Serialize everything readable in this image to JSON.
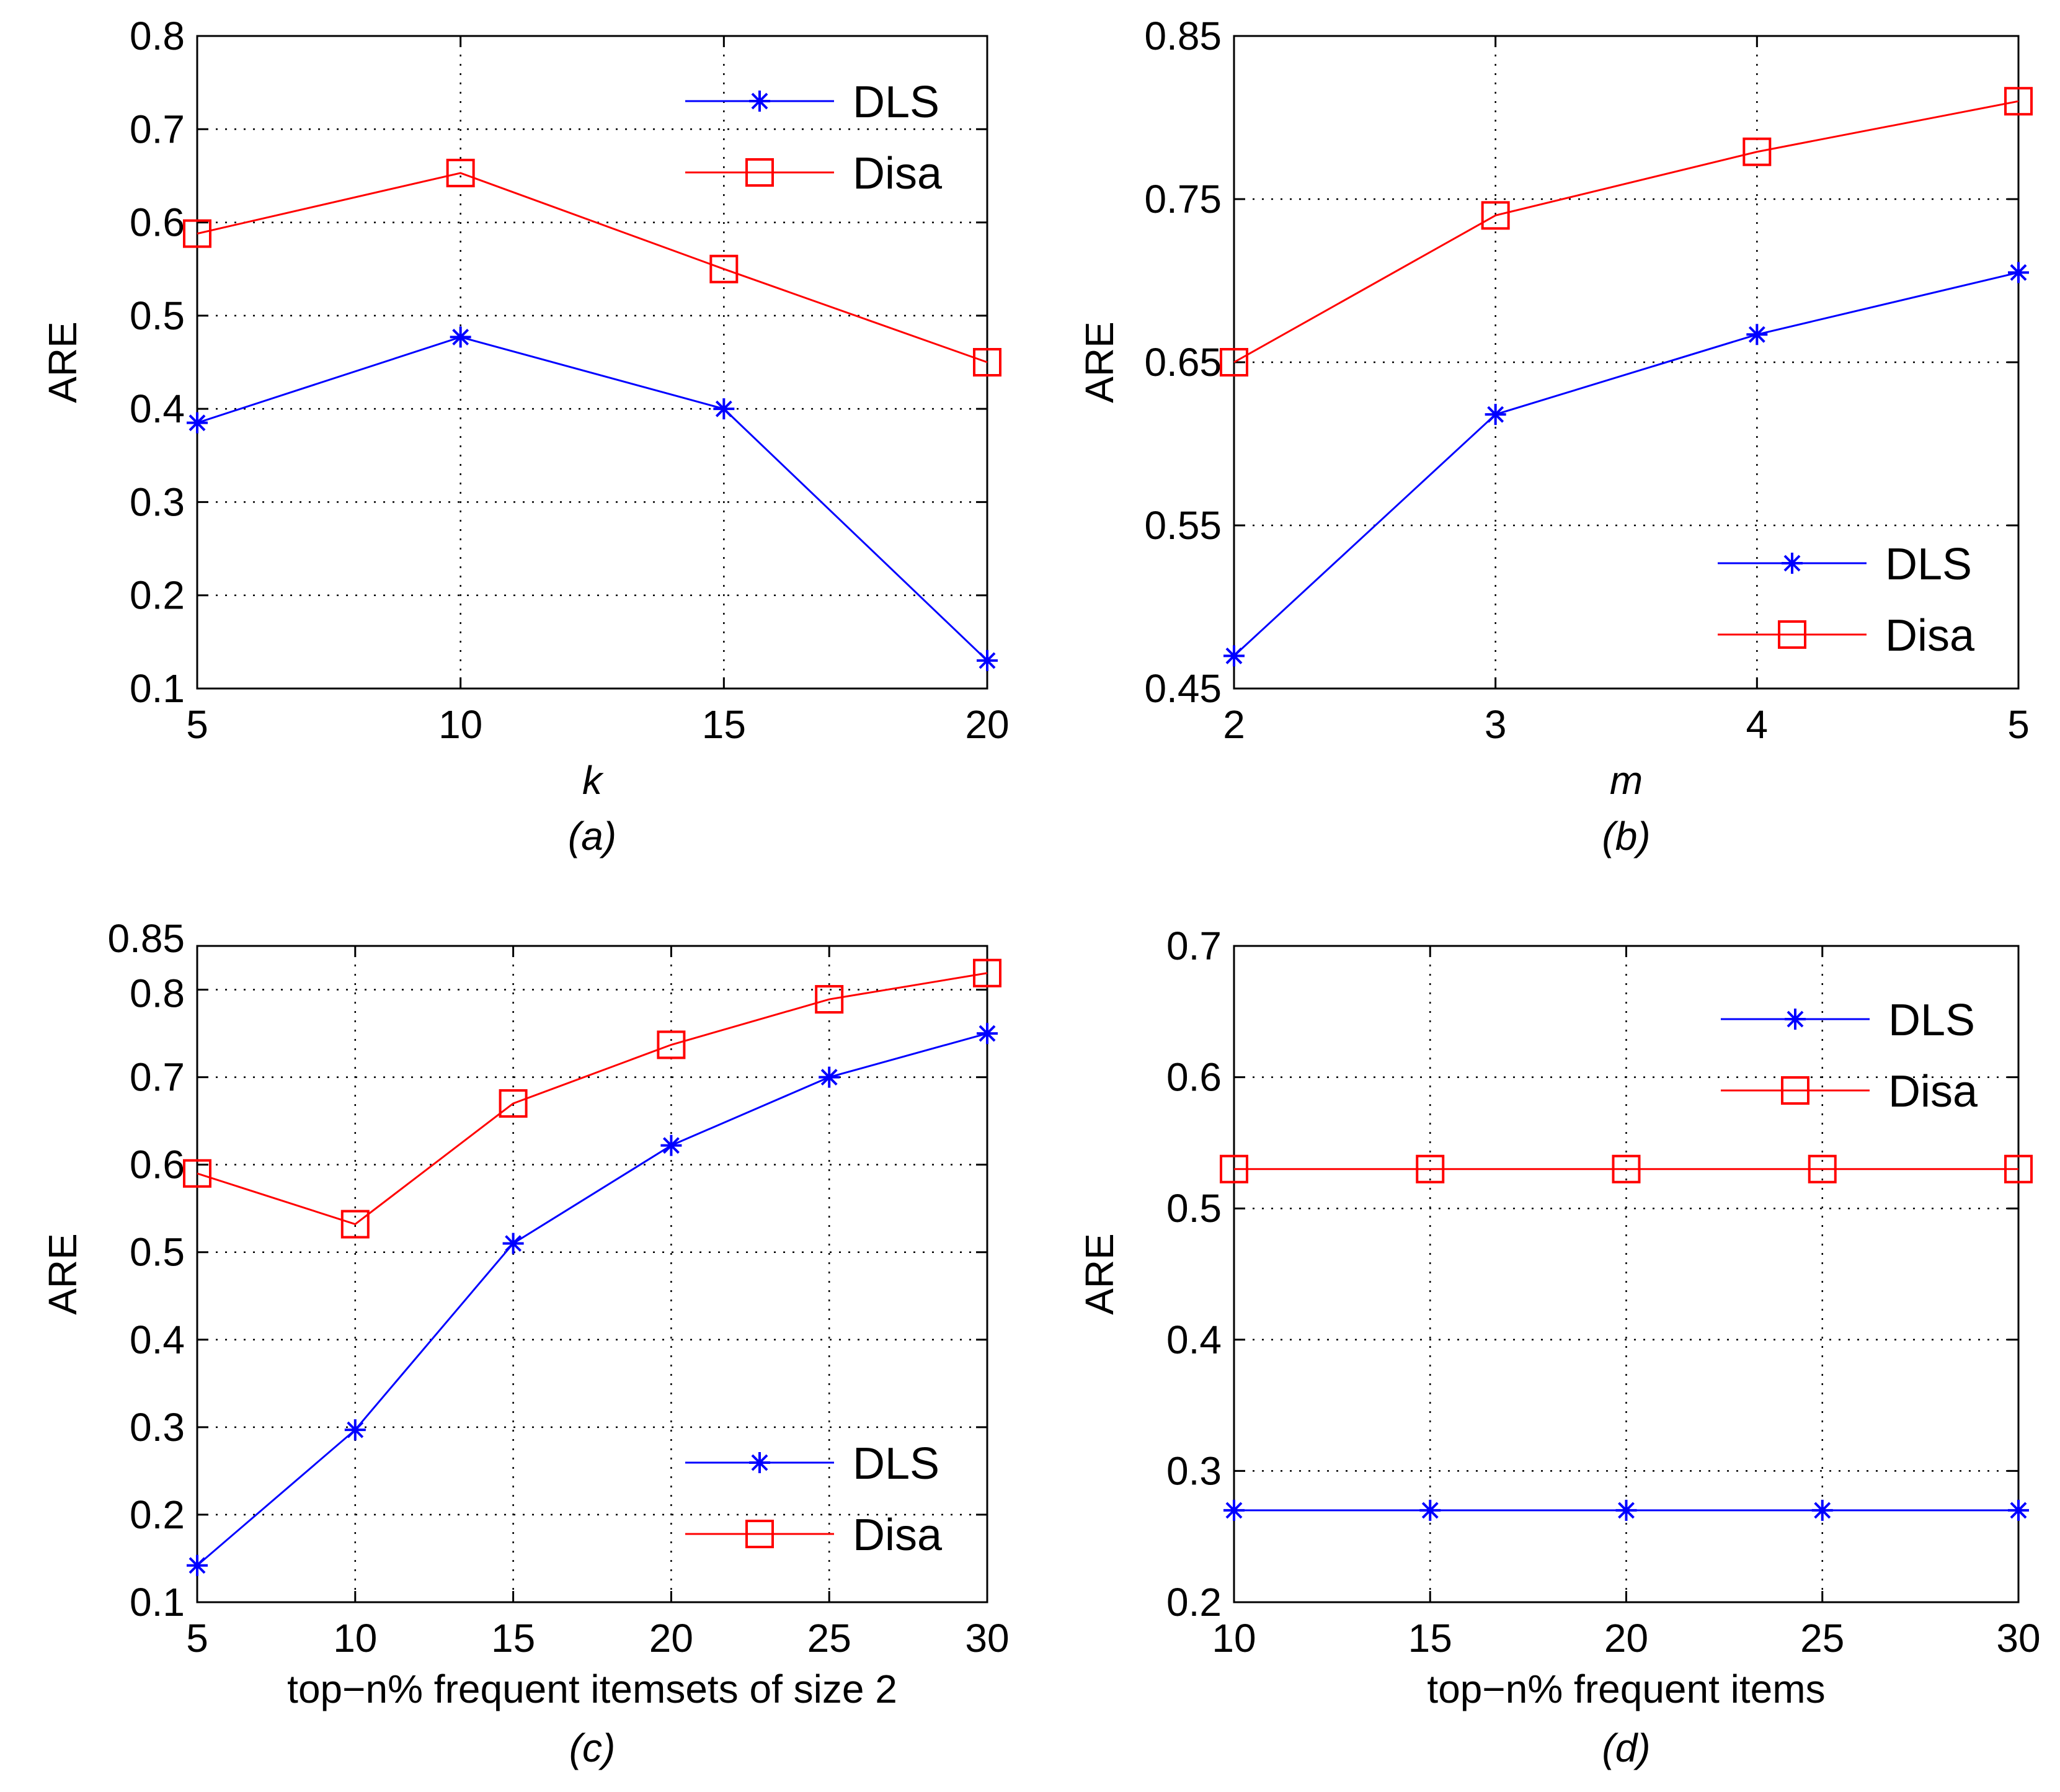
{
  "figure": {
    "colors": {
      "DLS": "#0000ff",
      "Disa": "#ff0000",
      "grid": "#000000",
      "axis": "#000000"
    }
  },
  "chart_data": [
    {
      "type": "line",
      "caption": "(a)",
      "xlabel": "k",
      "ylabel": "ARE",
      "xlim": [
        5,
        20
      ],
      "ylim": [
        0.1,
        0.8
      ],
      "x": [
        5,
        10,
        15,
        20
      ],
      "xticks": [
        "5",
        "10",
        "15",
        "20"
      ],
      "yticks": [
        "0.1",
        "0.2",
        "0.3",
        "0.4",
        "0.5",
        "0.6",
        "0.7",
        "0.8"
      ],
      "grid": true,
      "legend_position": "top-right",
      "series": [
        {
          "name": "DLS",
          "marker": "star",
          "values": [
            0.385,
            0.477,
            0.4,
            0.13
          ]
        },
        {
          "name": "Disa",
          "marker": "square",
          "values": [
            0.588,
            0.653,
            0.55,
            0.45
          ]
        }
      ]
    },
    {
      "type": "line",
      "caption": "(b)",
      "xlabel": "m",
      "ylabel": "ARE",
      "xlim": [
        2,
        5
      ],
      "ylim": [
        0.45,
        0.85
      ],
      "x": [
        2,
        3,
        4,
        5
      ],
      "xticks": [
        "2",
        "3",
        "4",
        "5"
      ],
      "yticks": [
        "0.45",
        "0.55",
        "0.65",
        "0.75",
        "0.85"
      ],
      "grid": true,
      "legend_position": "bottom-right",
      "series": [
        {
          "name": "DLS",
          "marker": "star",
          "values": [
            0.47,
            0.618,
            0.667,
            0.705
          ]
        },
        {
          "name": "Disa",
          "marker": "square",
          "values": [
            0.65,
            0.74,
            0.779,
            0.81
          ]
        }
      ]
    },
    {
      "type": "line",
      "caption": "(c)",
      "xlabel": "top−n% frequent itemsets of size 2",
      "ylabel": "ARE",
      "xlim": [
        5,
        30
      ],
      "ylim": [
        0.1,
        0.85
      ],
      "x": [
        5,
        10,
        15,
        20,
        25,
        30
      ],
      "xticks": [
        "5",
        "10",
        "15",
        "20",
        "25",
        "30"
      ],
      "yticks": [
        "0.1",
        "0.2",
        "0.3",
        "0.4",
        "0.5",
        "0.6",
        "0.7",
        "0.8",
        "0.85"
      ],
      "grid": true,
      "legend_position": "bottom-right",
      "series": [
        {
          "name": "DLS",
          "marker": "star",
          "values": [
            0.142,
            0.297,
            0.51,
            0.622,
            0.7,
            0.75
          ]
        },
        {
          "name": "Disa",
          "marker": "square",
          "values": [
            0.59,
            0.532,
            0.67,
            0.737,
            0.789,
            0.819
          ]
        }
      ]
    },
    {
      "type": "line",
      "caption": "(d)",
      "xlabel": "top−n% frequent items",
      "ylabel": "ARE",
      "xlim": [
        10,
        30
      ],
      "ylim": [
        0.2,
        0.7
      ],
      "x": [
        10,
        15,
        20,
        25,
        30
      ],
      "xticks": [
        "10",
        "15",
        "20",
        "25",
        "30"
      ],
      "yticks": [
        "0.2",
        "0.3",
        "0.4",
        "0.5",
        "0.6",
        "0.7"
      ],
      "grid": true,
      "legend_position": "top-right",
      "series": [
        {
          "name": "DLS",
          "marker": "star",
          "values": [
            0.27,
            0.27,
            0.27,
            0.27,
            0.27
          ]
        },
        {
          "name": "Disa",
          "marker": "square",
          "values": [
            0.53,
            0.53,
            0.53,
            0.53,
            0.53
          ]
        }
      ]
    }
  ]
}
